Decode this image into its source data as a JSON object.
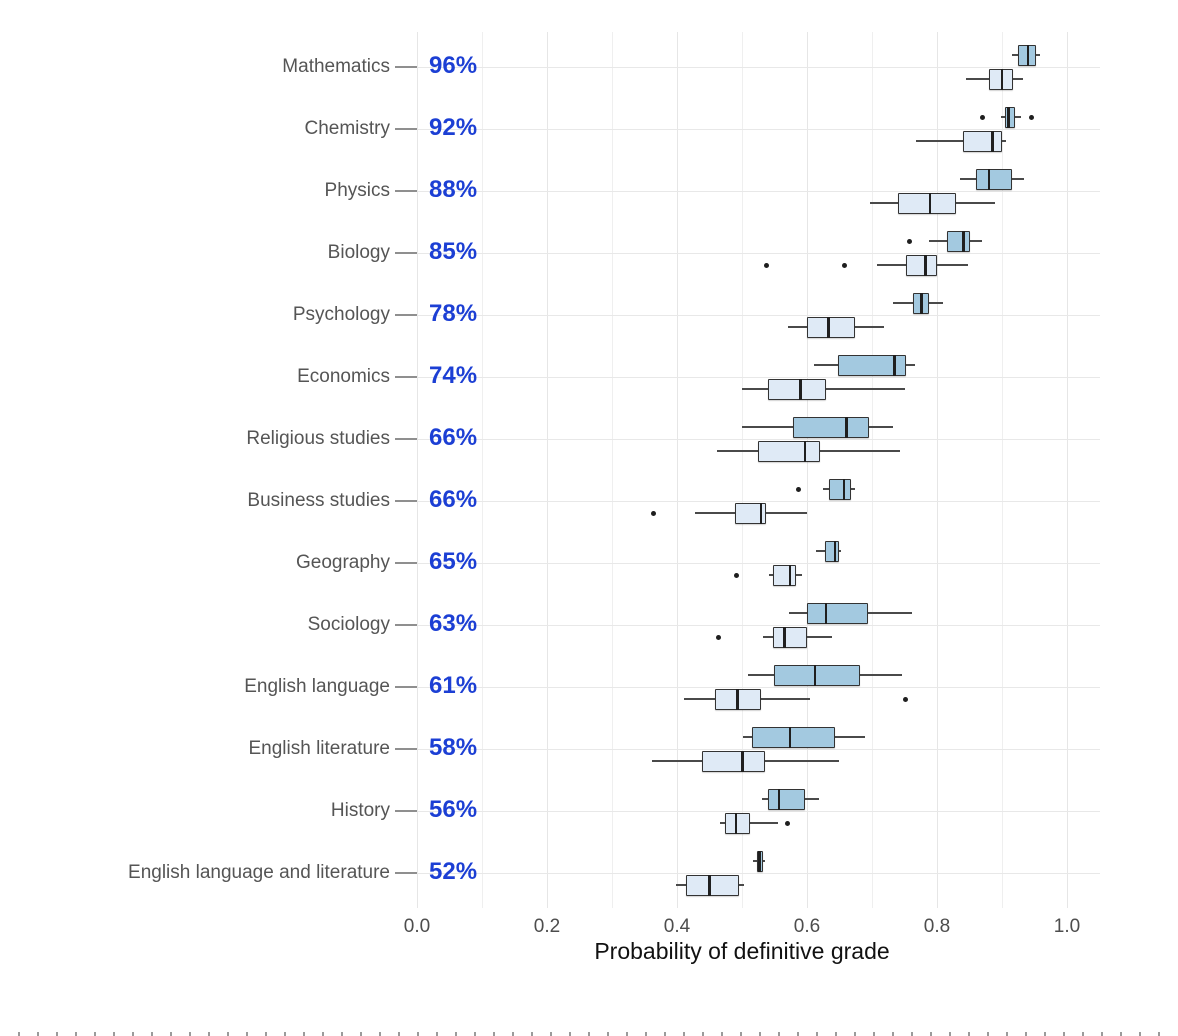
{
  "chart_data": {
    "type": "boxplot",
    "orientation": "horizontal",
    "title": "",
    "xlabel": "Probability of definitive grade",
    "xlim": [
      0,
      1.05
    ],
    "x_ticks": [
      0,
      0.2,
      0.4,
      0.6,
      0.8,
      1.0
    ],
    "x_tick_labels": [
      "0.0",
      "0.2",
      "0.4",
      "0.6",
      "0.8",
      "1.0"
    ],
    "x_minor_step": 0.1,
    "legend": "none",
    "grid": "vertical minor+major gridlines, horizontal line at each category",
    "note": "each subject has two boxplots: upper darker-blue box and lower lighter-blue box; bold blue percentage label at left inside panel",
    "colors": {
      "dark_box_fill": "#a3c9e0",
      "light_box_fill": "#dfeaf6",
      "box_border": "#333333",
      "median_line": "#1f1f1f",
      "whisker": "#4a4a4a",
      "outlier": "#1f1f1f",
      "pct_label": "#1c3fd4",
      "axis_text": "#4d4d4d",
      "subject_label": "#555555",
      "gridline": "#e9e9e9"
    },
    "rows": [
      {
        "subject": "Mathematics",
        "pct": "96%",
        "dark": {
          "whisker_lo": 0.915,
          "q1": 0.925,
          "median": 0.94,
          "q3": 0.953,
          "whisker_hi": 0.958,
          "outliers": []
        },
        "light": {
          "whisker_lo": 0.845,
          "q1": 0.88,
          "median": 0.9,
          "q3": 0.917,
          "whisker_hi": 0.932,
          "outliers": []
        }
      },
      {
        "subject": "Chemistry",
        "pct": "92%",
        "dark": {
          "whisker_lo": 0.898,
          "q1": 0.904,
          "median": 0.91,
          "q3": 0.92,
          "whisker_hi": 0.93,
          "outliers": [
            0.87,
            0.945
          ]
        },
        "light": {
          "whisker_lo": 0.768,
          "q1": 0.84,
          "median": 0.885,
          "q3": 0.9,
          "whisker_hi": 0.906,
          "outliers": []
        }
      },
      {
        "subject": "Physics",
        "pct": "88%",
        "dark": {
          "whisker_lo": 0.835,
          "q1": 0.86,
          "median": 0.88,
          "q3": 0.916,
          "whisker_hi": 0.934,
          "outliers": []
        },
        "light": {
          "whisker_lo": 0.697,
          "q1": 0.74,
          "median": 0.789,
          "q3": 0.829,
          "whisker_hi": 0.889,
          "outliers": []
        }
      },
      {
        "subject": "Biology",
        "pct": "85%",
        "dark": {
          "whisker_lo": 0.788,
          "q1": 0.815,
          "median": 0.841,
          "q3": 0.851,
          "whisker_hi": 0.87,
          "outliers": [
            0.757
          ]
        },
        "light": {
          "whisker_lo": 0.708,
          "q1": 0.752,
          "median": 0.782,
          "q3": 0.8,
          "whisker_hi": 0.848,
          "outliers": [
            0.537,
            0.657
          ]
        }
      },
      {
        "subject": "Psychology",
        "pct": "78%",
        "dark": {
          "whisker_lo": 0.733,
          "q1": 0.763,
          "median": 0.776,
          "q3": 0.787,
          "whisker_hi": 0.809,
          "outliers": []
        },
        "light": {
          "whisker_lo": 0.57,
          "q1": 0.6,
          "median": 0.633,
          "q3": 0.674,
          "whisker_hi": 0.718,
          "outliers": []
        }
      },
      {
        "subject": "Economics",
        "pct": "74%",
        "dark": {
          "whisker_lo": 0.611,
          "q1": 0.647,
          "median": 0.735,
          "q3": 0.752,
          "whisker_hi": 0.766,
          "outliers": []
        },
        "light": {
          "whisker_lo": 0.5,
          "q1": 0.54,
          "median": 0.59,
          "q3": 0.629,
          "whisker_hi": 0.75,
          "outliers": []
        }
      },
      {
        "subject": "Religious studies",
        "pct": "66%",
        "dark": {
          "whisker_lo": 0.5,
          "q1": 0.578,
          "median": 0.661,
          "q3": 0.696,
          "whisker_hi": 0.733,
          "outliers": []
        },
        "light": {
          "whisker_lo": 0.461,
          "q1": 0.525,
          "median": 0.597,
          "q3": 0.62,
          "whisker_hi": 0.743,
          "outliers": []
        }
      },
      {
        "subject": "Business studies",
        "pct": "66%",
        "dark": {
          "whisker_lo": 0.625,
          "q1": 0.634,
          "median": 0.657,
          "q3": 0.668,
          "whisker_hi": 0.674,
          "outliers": [
            0.587
          ]
        },
        "light": {
          "whisker_lo": 0.428,
          "q1": 0.489,
          "median": 0.529,
          "q3": 0.537,
          "whisker_hi": 0.6,
          "outliers": [
            0.364
          ]
        }
      },
      {
        "subject": "Geography",
        "pct": "65%",
        "dark": {
          "whisker_lo": 0.614,
          "q1": 0.628,
          "median": 0.643,
          "q3": 0.65,
          "whisker_hi": 0.653,
          "outliers": []
        },
        "light": {
          "whisker_lo": 0.542,
          "q1": 0.548,
          "median": 0.574,
          "q3": 0.583,
          "whisker_hi": 0.592,
          "outliers": [
            0.491
          ]
        }
      },
      {
        "subject": "Sociology",
        "pct": "63%",
        "dark": {
          "whisker_lo": 0.573,
          "q1": 0.6,
          "median": 0.629,
          "q3": 0.694,
          "whisker_hi": 0.761,
          "outliers": []
        },
        "light": {
          "whisker_lo": 0.532,
          "q1": 0.547,
          "median": 0.565,
          "q3": 0.6,
          "whisker_hi": 0.639,
          "outliers": [
            0.464
          ]
        }
      },
      {
        "subject": "English language",
        "pct": "61%",
        "dark": {
          "whisker_lo": 0.509,
          "q1": 0.549,
          "median": 0.612,
          "q3": 0.681,
          "whisker_hi": 0.746,
          "outliers": []
        },
        "light": {
          "whisker_lo": 0.411,
          "q1": 0.458,
          "median": 0.493,
          "q3": 0.53,
          "whisker_hi": 0.605,
          "outliers": [
            0.751
          ]
        }
      },
      {
        "subject": "English literature",
        "pct": "58%",
        "dark": {
          "whisker_lo": 0.501,
          "q1": 0.516,
          "median": 0.574,
          "q3": 0.643,
          "whisker_hi": 0.689,
          "outliers": []
        },
        "light": {
          "whisker_lo": 0.361,
          "q1": 0.438,
          "median": 0.501,
          "q3": 0.536,
          "whisker_hi": 0.65,
          "outliers": []
        }
      },
      {
        "subject": "History",
        "pct": "56%",
        "dark": {
          "whisker_lo": 0.53,
          "q1": 0.54,
          "median": 0.557,
          "q3": 0.597,
          "whisker_hi": 0.619,
          "outliers": []
        },
        "light": {
          "whisker_lo": 0.466,
          "q1": 0.474,
          "median": 0.491,
          "q3": 0.513,
          "whisker_hi": 0.556,
          "outliers": [
            0.57
          ]
        }
      },
      {
        "subject": "English language and literature",
        "pct": "52%",
        "dark": {
          "whisker_lo": 0.517,
          "q1": 0.523,
          "median": 0.527,
          "q3": 0.532,
          "whisker_hi": 0.536,
          "outliers": []
        },
        "light": {
          "whisker_lo": 0.398,
          "q1": 0.414,
          "median": 0.45,
          "q3": 0.496,
          "whisker_hi": 0.503,
          "outliers": []
        }
      }
    ]
  }
}
